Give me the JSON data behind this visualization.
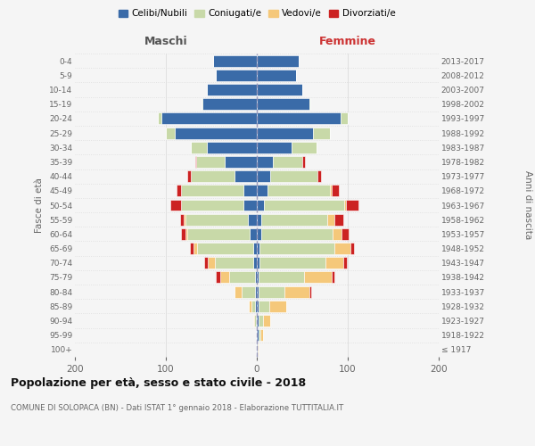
{
  "age_groups": [
    "100+",
    "95-99",
    "90-94",
    "85-89",
    "80-84",
    "75-79",
    "70-74",
    "65-69",
    "60-64",
    "55-59",
    "50-54",
    "45-49",
    "40-44",
    "35-39",
    "30-34",
    "25-29",
    "20-24",
    "15-19",
    "10-14",
    "5-9",
    "0-4"
  ],
  "birth_years": [
    "≤ 1917",
    "1918-1922",
    "1923-1927",
    "1928-1932",
    "1933-1937",
    "1938-1942",
    "1943-1947",
    "1948-1952",
    "1953-1957",
    "1958-1962",
    "1963-1967",
    "1968-1972",
    "1973-1977",
    "1978-1982",
    "1983-1987",
    "1988-1992",
    "1993-1997",
    "1998-2002",
    "2003-2007",
    "2008-2012",
    "2013-2017"
  ],
  "colors": {
    "celibi": "#3a6ba8",
    "coniugati": "#c8d9a8",
    "vedovi": "#f5c87a",
    "divorziati": "#cc2222"
  },
  "males": {
    "celibi": [
      1,
      1,
      1,
      2,
      2,
      2,
      4,
      4,
      8,
      10,
      15,
      15,
      25,
      35,
      55,
      90,
      105,
      60,
      55,
      45,
      48
    ],
    "coniugati": [
      0,
      0,
      2,
      4,
      15,
      28,
      42,
      62,
      68,
      68,
      68,
      68,
      48,
      32,
      18,
      10,
      4,
      1,
      0,
      0,
      0
    ],
    "vedovi": [
      0,
      0,
      1,
      3,
      8,
      10,
      8,
      4,
      2,
      2,
      0,
      0,
      0,
      0,
      0,
      0,
      0,
      0,
      0,
      0,
      0
    ],
    "divorziati": [
      0,
      0,
      0,
      0,
      0,
      5,
      4,
      4,
      5,
      4,
      12,
      5,
      3,
      1,
      0,
      0,
      0,
      0,
      0,
      0,
      0
    ]
  },
  "females": {
    "celibi": [
      1,
      2,
      2,
      2,
      2,
      2,
      3,
      3,
      5,
      5,
      8,
      12,
      15,
      18,
      38,
      62,
      92,
      58,
      50,
      43,
      46
    ],
    "coniugati": [
      0,
      2,
      5,
      12,
      28,
      50,
      72,
      82,
      78,
      72,
      88,
      68,
      52,
      32,
      28,
      18,
      8,
      1,
      0,
      0,
      0
    ],
    "vedovi": [
      1,
      3,
      8,
      18,
      28,
      30,
      20,
      18,
      10,
      8,
      2,
      2,
      0,
      0,
      0,
      0,
      0,
      0,
      0,
      0,
      0
    ],
    "divorziati": [
      0,
      0,
      0,
      0,
      2,
      3,
      4,
      4,
      8,
      10,
      14,
      8,
      4,
      3,
      0,
      0,
      0,
      0,
      0,
      0,
      0
    ]
  },
  "title": "Popolazione per età, sesso e stato civile - 2018",
  "subtitle": "COMUNE DI SOLOPACA (BN) - Dati ISTAT 1° gennaio 2018 - Elaborazione TUTTITALIA.IT",
  "xlabel_left": "Maschi",
  "xlabel_right": "Femmine",
  "ylabel_left": "Fasce di età",
  "ylabel_right": "Anni di nascita",
  "xlim": 200,
  "legend_labels": [
    "Celibi/Nubili",
    "Coniugati/e",
    "Vedovi/e",
    "Divorziati/e"
  ],
  "bg_color": "#f5f5f5",
  "bar_edge_color": "white",
  "grid_color": "#dddddd",
  "center_line_color": "#9999bb",
  "text_color": "#666666",
  "title_color": "#111111",
  "maschi_color": "#555555",
  "femmine_color": "#cc3333"
}
